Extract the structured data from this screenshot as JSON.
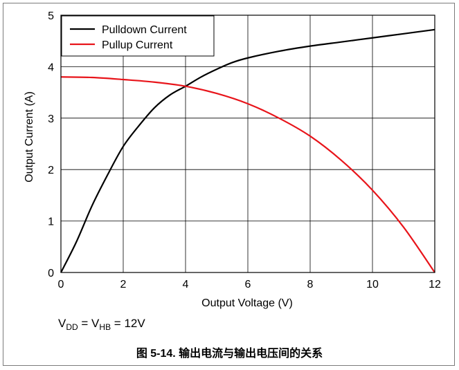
{
  "chart_data": {
    "type": "line",
    "title": "",
    "xlabel": "Output Voltage (V)",
    "ylabel": "Output Current (A)",
    "xlim": [
      0,
      12
    ],
    "ylim": [
      0,
      5
    ],
    "x_ticks": [
      0,
      2,
      4,
      6,
      8,
      10,
      12
    ],
    "y_ticks": [
      0,
      1,
      2,
      3,
      4,
      5
    ],
    "grid": true,
    "legend_position": "top-left",
    "series": [
      {
        "name": "Pulldown Current",
        "color": "#000000",
        "x": [
          0,
          0.5,
          1,
          1.5,
          2,
          2.5,
          3,
          3.5,
          4,
          4.5,
          5,
          5.5,
          6,
          7,
          8,
          9,
          10,
          11,
          12
        ],
        "y": [
          0,
          0.6,
          1.3,
          1.9,
          2.45,
          2.85,
          3.2,
          3.45,
          3.62,
          3.8,
          3.95,
          4.08,
          4.17,
          4.3,
          4.4,
          4.48,
          4.56,
          4.64,
          4.72
        ]
      },
      {
        "name": "Pullup Current",
        "color": "#e8141a",
        "x": [
          0,
          1,
          2,
          3,
          4,
          5,
          6,
          7,
          8,
          9,
          10,
          11,
          12
        ],
        "y": [
          3.8,
          3.79,
          3.75,
          3.7,
          3.62,
          3.48,
          3.28,
          3.0,
          2.65,
          2.18,
          1.6,
          0.88,
          0
        ]
      }
    ]
  },
  "condition": {
    "v1": "V",
    "v1_sub": "DD",
    "eq": " = V",
    "v2_sub": "HB",
    "value": " = 12V"
  },
  "caption": "图 5-14. 输出电流与输出电压间的关系"
}
